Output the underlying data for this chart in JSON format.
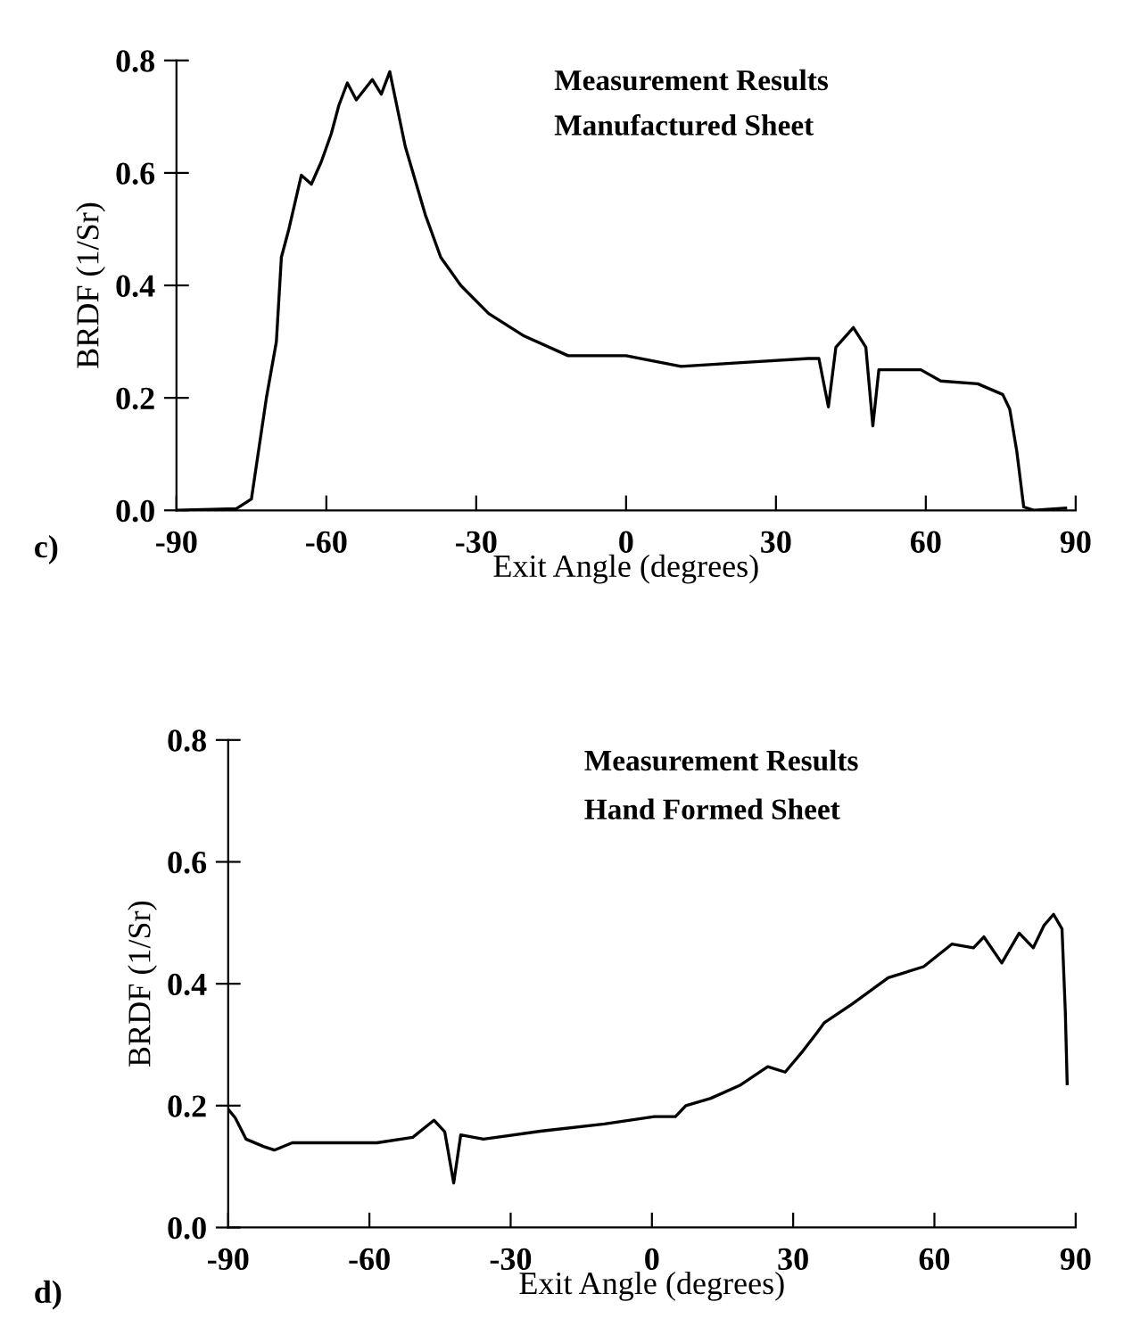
{
  "chart_data": [
    {
      "type": "line",
      "title": "Measurement Results",
      "subtitle": "Manufactured Sheet",
      "xlabel": "Exit Angle (degrees)",
      "ylabel": "BRDF (1/Sr)",
      "annotations": [
        "c)"
      ],
      "series": [
        {
          "color": "#000000",
          "x": [
            -90,
            -78,
            -75,
            -72,
            -70,
            -69,
            -67.5,
            -65,
            -63,
            -61,
            -59,
            -57.5,
            -55.8,
            -54,
            -50.8,
            -49,
            -47.3,
            -44.2,
            -40.2,
            -37.1,
            -33.1,
            -27.5,
            -20.4,
            -11.6,
            0,
            11,
            23.8,
            36.5,
            38.6,
            40.5,
            42,
            45.5,
            48,
            49.4,
            50.6,
            54.9,
            59,
            63,
            70.4,
            75.4,
            76.8,
            78.2,
            79.6,
            81.7,
            88
          ],
          "values": [
            0,
            0.003,
            0.02,
            0.2,
            0.3,
            0.45,
            0.5,
            0.596,
            0.58,
            0.62,
            0.67,
            0.72,
            0.76,
            0.73,
            0.766,
            0.74,
            0.78,
            0.647,
            0.526,
            0.45,
            0.4,
            0.35,
            0.31,
            0.275,
            0.275,
            0.256,
            0.263,
            0.27,
            0.27,
            0.184,
            0.29,
            0.325,
            0.29,
            0.15,
            0.25,
            0.25,
            0.25,
            0.23,
            0.225,
            0.206,
            0.18,
            0.106,
            0.006,
            0,
            0.004
          ]
        }
      ],
      "xlim": [
        -90,
        90
      ],
      "xticks": [
        -90,
        -60,
        -30,
        0,
        30,
        60,
        90
      ],
      "ylim": [
        0,
        0.8
      ],
      "yticks": [
        {
          "value": 0,
          "label": "0.0"
        },
        0.2,
        0.4,
        0.6,
        0.8
      ],
      "grid": false,
      "legend": false,
      "marker": "none",
      "line_style": "solid"
    },
    {
      "type": "line",
      "title": "Measurement Results",
      "subtitle": "Hand Formed Sheet",
      "xlabel": "Exit Angle (degrees)",
      "ylabel": "BRDF (1/Sr)",
      "annotations": [
        "d)"
      ],
      "series": [
        {
          "color": "#000000",
          "x": [
            -90,
            -88.5,
            -86.2,
            -82.5,
            -80.2,
            -76.4,
            -70.4,
            -62.9,
            -58.4,
            -50.8,
            -46.3,
            -44,
            -42.1,
            -40.6,
            -35.8,
            -23.7,
            -10.1,
            0.5,
            5,
            7.2,
            12.5,
            18.6,
            24.6,
            28.3,
            32.1,
            35.1,
            36.6,
            42.6,
            50.2,
            57.7,
            63.7,
            68.3,
            70.5,
            74.3,
            78,
            81,
            83.3,
            85.3,
            87.1,
            87.8,
            88.2
          ],
          "values": [
            0.194,
            0.18,
            0.145,
            0.133,
            0.127,
            0.139,
            0.139,
            0.139,
            0.139,
            0.148,
            0.176,
            0.157,
            0.073,
            0.152,
            0.145,
            0.158,
            0.17,
            0.182,
            0.182,
            0.2,
            0.212,
            0.233,
            0.264,
            0.255,
            0.29,
            0.32,
            0.336,
            0.367,
            0.41,
            0.428,
            0.465,
            0.459,
            0.477,
            0.434,
            0.483,
            0.459,
            0.496,
            0.514,
            0.49,
            0.355,
            0.236
          ]
        }
      ],
      "xlim": [
        -90,
        90
      ],
      "xticks": [
        -90,
        -60,
        -30,
        0,
        30,
        60,
        90
      ],
      "ylim": [
        0,
        0.8
      ],
      "yticks": [
        {
          "value": 0,
          "label": "0.0"
        },
        0.2,
        0.4,
        0.6,
        0.8
      ],
      "grid": false,
      "legend": false,
      "marker": "none",
      "line_style": "solid"
    }
  ]
}
